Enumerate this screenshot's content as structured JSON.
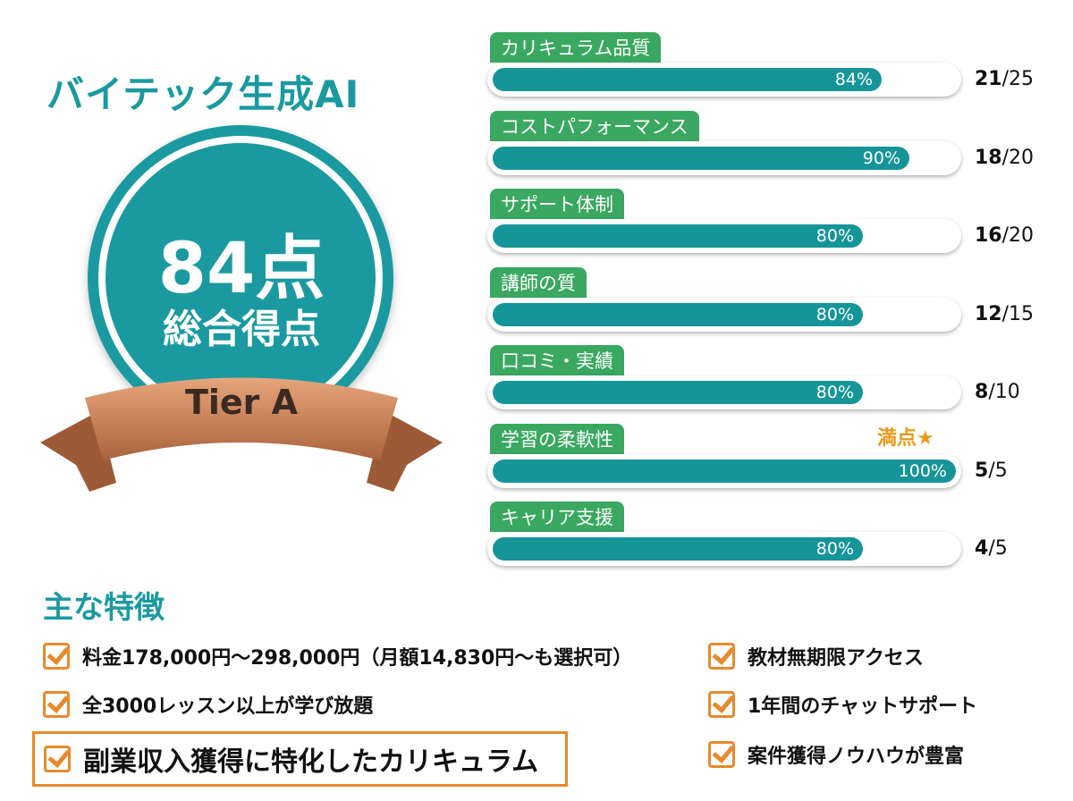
{
  "title": "バイテック生成AI",
  "total": {
    "score": "84点",
    "label": "総合得点",
    "tier": "Tier A"
  },
  "colors": {
    "teal": "#1a9aa0",
    "green": "#3aa860",
    "orange": "#e8892c",
    "bronze": "#c9835a"
  },
  "chart_data": {
    "type": "bar",
    "categories": [
      "カリキュラム品質",
      "コストパフォーマンス",
      "サポート体制",
      "講師の質",
      "口コミ・実績",
      "学習の柔軟性",
      "キャリア支援"
    ],
    "values": [
      84,
      90,
      80,
      80,
      80,
      100,
      80
    ],
    "value_labels": [
      "84%",
      "90%",
      "80%",
      "80%",
      "80%",
      "100%",
      "80%"
    ],
    "scores": [
      {
        "got": "21",
        "max": "/25"
      },
      {
        "got": "18",
        "max": "/20"
      },
      {
        "got": "16",
        "max": "/20"
      },
      {
        "got": "12",
        "max": "/15"
      },
      {
        "got": "8",
        "max": "/10"
      },
      {
        "got": "5",
        "max": "/5"
      },
      {
        "got": "4",
        "max": "/5"
      }
    ],
    "annotation": "満点★",
    "ylim": [
      0,
      100
    ]
  },
  "features": {
    "heading": "主な特徴",
    "left": [
      "料金178,000円〜298,000円（月額14,830円〜も選択可）",
      "全3000レッスン以上が学び放題",
      "副業収入獲得に特化したカリキュラム"
    ],
    "right": [
      "教材無期限アクセス",
      "1年間のチャットサポート",
      "案件獲得ノウハウが豊富"
    ]
  }
}
